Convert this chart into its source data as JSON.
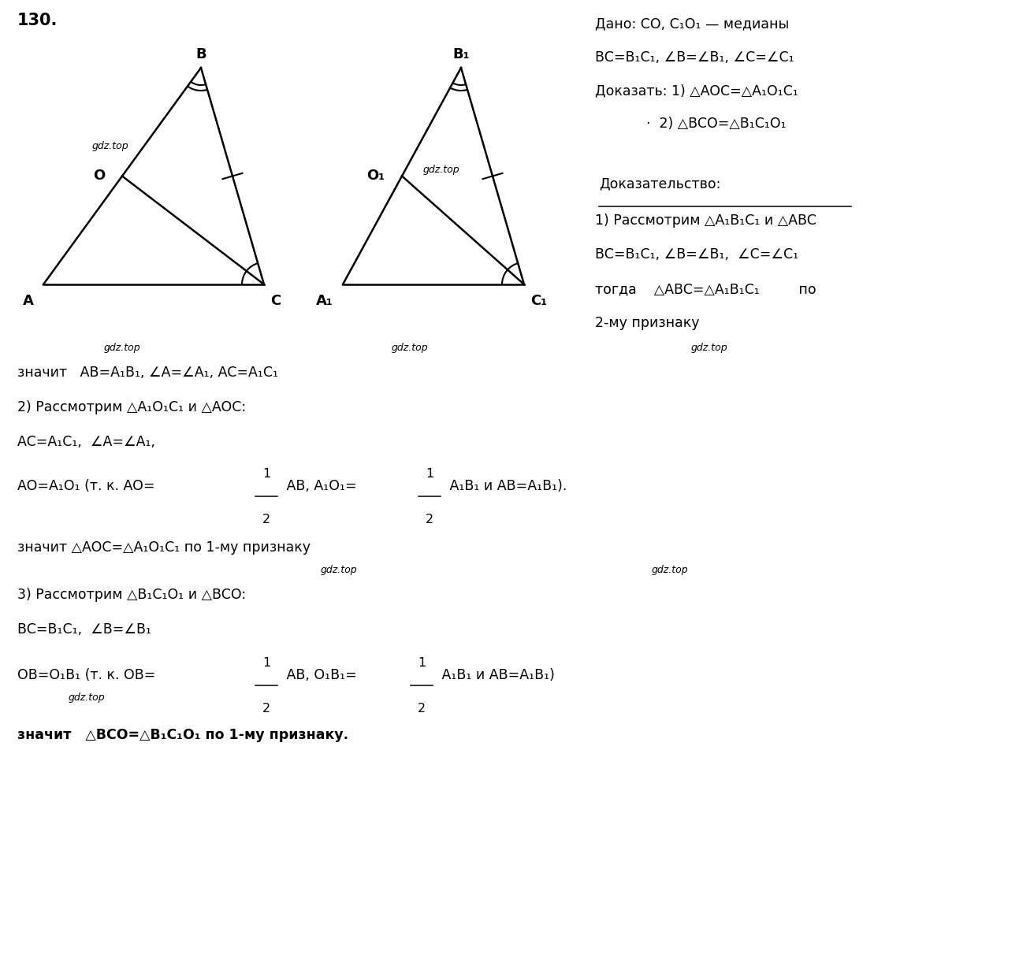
{
  "bg_color": "#ffffff",
  "fig_width": 13.12,
  "fig_height": 12.16,
  "t1": {
    "A": [
      0.55,
      8.55
    ],
    "B": [
      2.55,
      11.3
    ],
    "C": [
      3.35,
      8.55
    ]
  },
  "t2": {
    "A1": [
      4.35,
      8.55
    ],
    "B1": [
      5.85,
      11.3
    ],
    "C1": [
      6.65,
      8.55
    ]
  }
}
